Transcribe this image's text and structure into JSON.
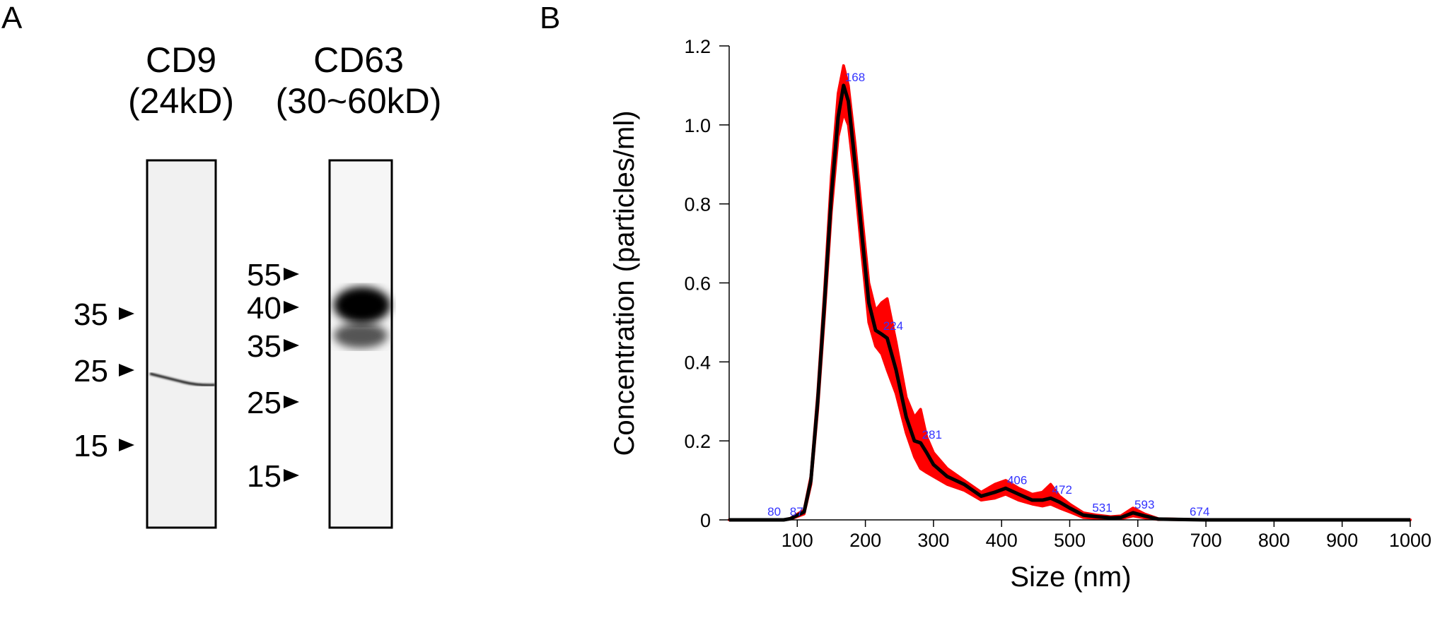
{
  "panels": {
    "a": "A",
    "b": "B"
  },
  "blot": {
    "lanes": [
      {
        "name": "CD9",
        "size": "(24kD)",
        "markers": [
          "35",
          "25",
          "15"
        ]
      },
      {
        "name": "CD63",
        "size": "(30~60kD)",
        "markers": [
          "55",
          "40",
          "35",
          "25",
          "15"
        ]
      }
    ]
  },
  "chart_data": {
    "type": "line",
    "xlabel": "Size (nm)",
    "ylabel": "Concentration (particles/ml)",
    "xlim": [
      0,
      1000
    ],
    "ylim": [
      0,
      1.2
    ],
    "xticks": [
      100,
      200,
      300,
      400,
      500,
      600,
      700,
      800,
      900,
      1000
    ],
    "yticks": [
      "0",
      "0.2",
      "0.4",
      "0.6",
      "0.8",
      "1.0",
      "1.2"
    ],
    "grid": false,
    "colors": {
      "mean": "#000000",
      "error_band": "#ff0000",
      "peak_labels": "#3333ff"
    },
    "x": [
      0,
      80,
      90,
      110,
      120,
      130,
      140,
      150,
      160,
      168,
      175,
      185,
      195,
      205,
      215,
      224,
      232,
      245,
      260,
      272,
      281,
      290,
      300,
      320,
      345,
      370,
      390,
      406,
      425,
      445,
      460,
      472,
      485,
      500,
      520,
      540,
      560,
      575,
      593,
      610,
      630,
      700,
      1000
    ],
    "mean": [
      0,
      0,
      0.003,
      0.02,
      0.1,
      0.3,
      0.55,
      0.82,
      1.02,
      1.1,
      1.06,
      0.9,
      0.72,
      0.55,
      0.48,
      0.47,
      0.46,
      0.38,
      0.26,
      0.2,
      0.195,
      0.17,
      0.14,
      0.11,
      0.09,
      0.06,
      0.07,
      0.08,
      0.065,
      0.05,
      0.05,
      0.055,
      0.045,
      0.03,
      0.012,
      0.008,
      0.005,
      0.006,
      0.018,
      0.01,
      0.002,
      0,
      0
    ],
    "upper": [
      0,
      0,
      0.004,
      0.025,
      0.11,
      0.32,
      0.58,
      0.87,
      1.08,
      1.15,
      1.1,
      0.95,
      0.77,
      0.6,
      0.53,
      0.55,
      0.56,
      0.45,
      0.31,
      0.26,
      0.28,
      0.21,
      0.17,
      0.13,
      0.1,
      0.07,
      0.09,
      0.1,
      0.08,
      0.065,
      0.07,
      0.09,
      0.06,
      0.04,
      0.018,
      0.012,
      0.008,
      0.01,
      0.03,
      0.015,
      0.003,
      0,
      0
    ],
    "lower": [
      0,
      0,
      0.002,
      0.015,
      0.09,
      0.28,
      0.52,
      0.78,
      0.97,
      1.03,
      1.0,
      0.85,
      0.67,
      0.5,
      0.44,
      0.42,
      0.38,
      0.32,
      0.22,
      0.16,
      0.13,
      0.12,
      0.11,
      0.09,
      0.075,
      0.05,
      0.055,
      0.065,
      0.05,
      0.04,
      0.035,
      0.04,
      0.03,
      0.02,
      0.006,
      0.004,
      0.003,
      0.003,
      0.01,
      0.005,
      0.001,
      0,
      0
    ],
    "peak_labels": [
      {
        "x": 80,
        "y": 0.0,
        "text": "80"
      },
      {
        "x": 87,
        "y": 0.0,
        "text": "87"
      },
      {
        "x": 168,
        "y": 1.1,
        "text": "168"
      },
      {
        "x": 224,
        "y": 0.47,
        "text": "224"
      },
      {
        "x": 281,
        "y": 0.195,
        "text": "281"
      },
      {
        "x": 406,
        "y": 0.08,
        "text": "406"
      },
      {
        "x": 472,
        "y": 0.055,
        "text": "472"
      },
      {
        "x": 531,
        "y": 0.01,
        "text": "531"
      },
      {
        "x": 593,
        "y": 0.018,
        "text": "593"
      },
      {
        "x": 674,
        "y": 0.0,
        "text": "674"
      }
    ]
  }
}
